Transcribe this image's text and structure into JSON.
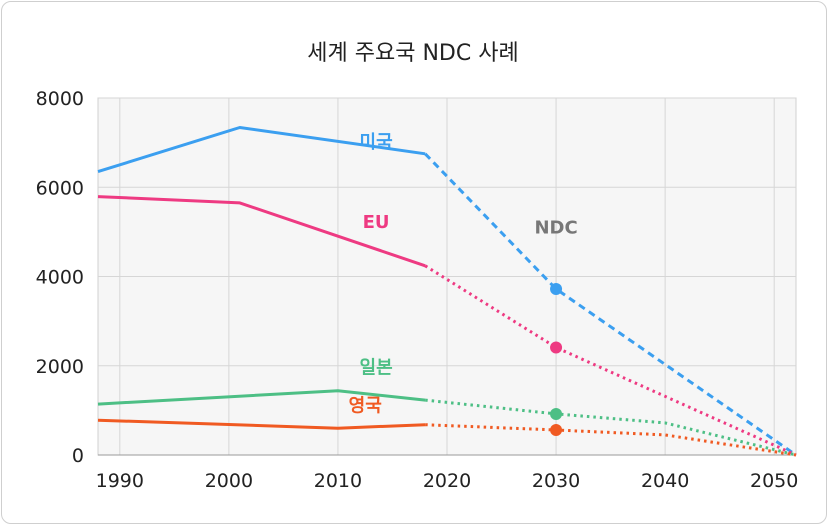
{
  "chart_data": {
    "type": "line",
    "title": "세계 주요국 NDC 사례",
    "xlabel": "",
    "ylabel": "",
    "xlim": [
      1988,
      2052
    ],
    "ylim": [
      0,
      8000
    ],
    "x_ticks": [
      "1990",
      "2000",
      "2010",
      "2020",
      "2030",
      "2040",
      "2050"
    ],
    "y_ticks": [
      "0",
      "2000",
      "4000",
      "6000",
      "8000"
    ],
    "grid": true,
    "ndc_label": "NDC",
    "series": [
      {
        "name": "미국",
        "color": "#3b9ff0",
        "historical": [
          [
            1988,
            6350
          ],
          [
            2001,
            7340
          ],
          [
            2018,
            6750
          ]
        ],
        "projected": [
          [
            2018,
            6750
          ],
          [
            2030,
            3720
          ],
          [
            2052,
            0
          ]
        ],
        "ndc_point": [
          2030,
          3720
        ]
      },
      {
        "name": "EU",
        "color": "#ee3a82",
        "historical": [
          [
            1988,
            5790
          ],
          [
            2001,
            5650
          ],
          [
            2018,
            4240
          ]
        ],
        "projected": [
          [
            2018,
            4240
          ],
          [
            2030,
            2410
          ],
          [
            2052,
            0
          ]
        ],
        "ndc_point": [
          2030,
          2410
        ]
      },
      {
        "name": "일본",
        "color": "#4dbf85",
        "historical": [
          [
            1988,
            1140
          ],
          [
            2010,
            1440
          ],
          [
            2018,
            1230
          ]
        ],
        "projected": [
          [
            2018,
            1230
          ],
          [
            2030,
            920
          ],
          [
            2040,
            720
          ],
          [
            2052,
            0
          ]
        ],
        "ndc_point": [
          2030,
          920
        ]
      },
      {
        "name": "영국",
        "color": "#f05a22",
        "historical": [
          [
            1988,
            780
          ],
          [
            2010,
            600
          ],
          [
            2018,
            680
          ]
        ],
        "projected": [
          [
            2018,
            680
          ],
          [
            2030,
            560
          ],
          [
            2040,
            450
          ],
          [
            2052,
            0
          ]
        ],
        "ndc_point": [
          2030,
          560
        ]
      }
    ]
  }
}
